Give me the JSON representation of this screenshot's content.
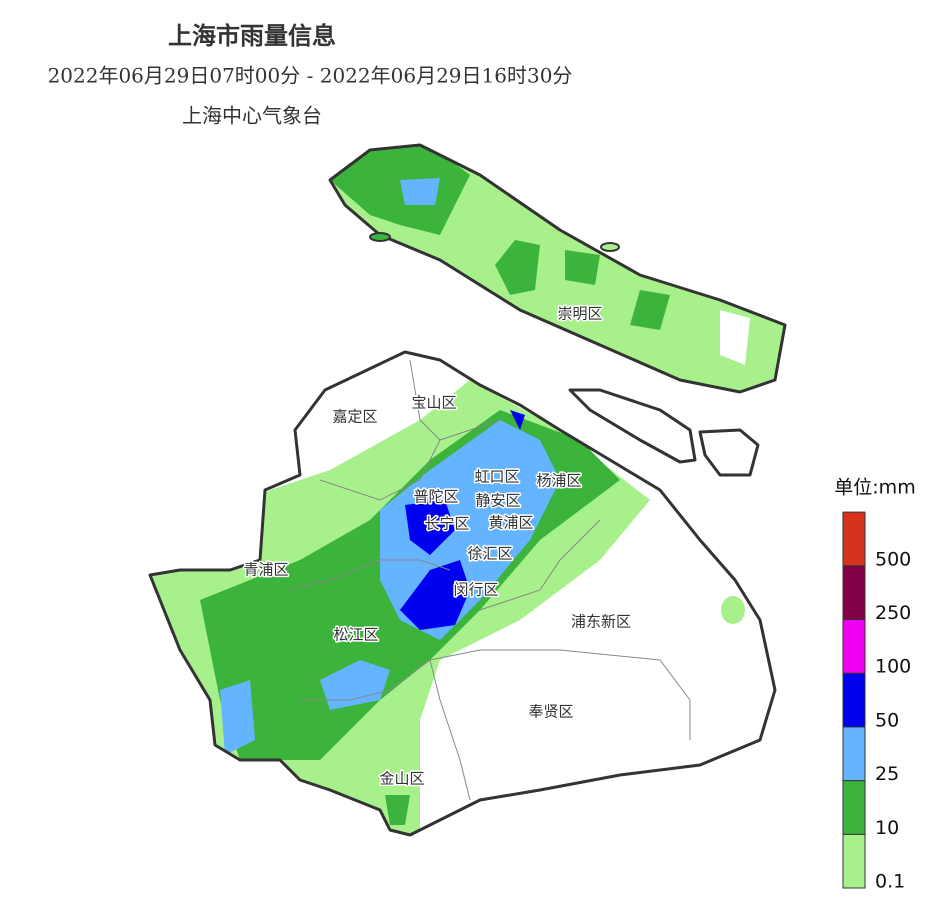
{
  "header": {
    "title": "上海市雨量信息",
    "period": "2022年06月29日07时00分 - 2022年06月29日16时30分",
    "source": "上海中心气象台"
  },
  "districts": [
    "崇明区",
    "宝山区",
    "嘉定区",
    "虹口区",
    "杨浦区",
    "普陀区",
    "静安区",
    "长宁区",
    "黄浦区",
    "徐汇区",
    "青浦区",
    "闵行区",
    "浦东新区",
    "松江区",
    "奉贤区",
    "金山区"
  ],
  "legend": {
    "unit": "单位:mm",
    "ticks": [
      0.1,
      10,
      25,
      50,
      100,
      250,
      500
    ],
    "colors": [
      "#a8f08c",
      "#3cb43c",
      "#64b4ff",
      "#0000f0",
      "#f000f0",
      "#820046",
      "#d7321e"
    ]
  }
}
